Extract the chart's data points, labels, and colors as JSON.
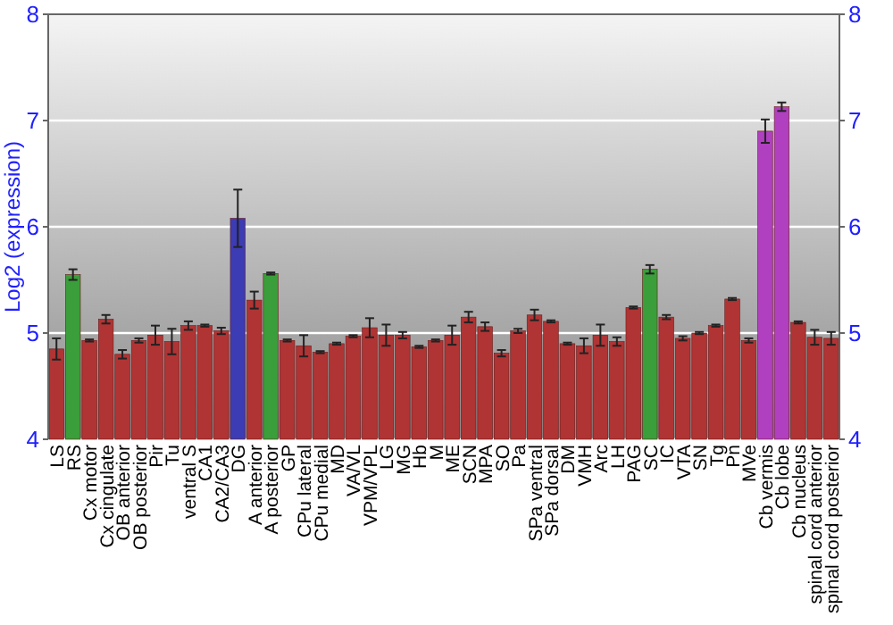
{
  "chart_data": {
    "type": "bar",
    "ylabel": "Log2 (expression)",
    "categories": [
      "LS",
      "RS",
      "Cx motor",
      "Cx cingulate",
      "OB anterior",
      "OB posterior",
      "Pir",
      "Tu",
      "ventral S",
      "CA1",
      "CA2/CA3",
      "DG",
      "A anterior",
      "A posterior",
      "GP",
      "CPu lateral",
      "CPu medial",
      "MD",
      "VA/VL",
      "VPM/VPL",
      "LG",
      "MG",
      "Hb",
      "M",
      "ME",
      "SCN",
      "MPA",
      "SO",
      "Pa",
      "SPa ventral",
      "SPa dorsal",
      "DM",
      "VMH",
      "Arc",
      "LH",
      "PAG",
      "SC",
      "IC",
      "VTA",
      "SN",
      "Tg",
      "Pn",
      "MVe",
      "Cb vermis",
      "Cb lobe",
      "Cb nucleus",
      "spinal cord anterior",
      "spinal cord posterior"
    ],
    "values": [
      4.85,
      5.55,
      4.93,
      5.13,
      4.8,
      4.93,
      4.98,
      4.92,
      5.07,
      5.07,
      5.02,
      6.08,
      5.31,
      5.56,
      4.93,
      4.88,
      4.82,
      4.9,
      4.97,
      5.05,
      4.98,
      4.98,
      4.87,
      4.93,
      4.98,
      5.15,
      5.06,
      4.81,
      5.02,
      5.17,
      5.11,
      4.9,
      4.88,
      4.98,
      4.92,
      5.24,
      5.6,
      5.15,
      4.95,
      5.0,
      5.07,
      5.32,
      4.93,
      6.9,
      7.13,
      5.1,
      4.96,
      4.95
    ],
    "errors": [
      0.1,
      0.05,
      0.01,
      0.04,
      0.04,
      0.02,
      0.09,
      0.12,
      0.04,
      0.01,
      0.03,
      0.27,
      0.08,
      0.01,
      0.01,
      0.1,
      0.01,
      0.01,
      0.01,
      0.09,
      0.1,
      0.03,
      0.01,
      0.01,
      0.09,
      0.05,
      0.04,
      0.03,
      0.02,
      0.05,
      0.01,
      0.01,
      0.07,
      0.1,
      0.04,
      0.01,
      0.04,
      0.02,
      0.02,
      0.01,
      0.01,
      0.01,
      0.02,
      0.11,
      0.04,
      0.01,
      0.07,
      0.06
    ],
    "colors": [
      "#b03434",
      "#3a9e3a",
      "#b03434",
      "#b03434",
      "#b03434",
      "#b03434",
      "#b03434",
      "#b03434",
      "#b03434",
      "#b03434",
      "#b03434",
      "#3c3cb4",
      "#b03434",
      "#3a9e3a",
      "#b03434",
      "#b03434",
      "#b03434",
      "#b03434",
      "#b03434",
      "#b03434",
      "#b03434",
      "#b03434",
      "#b03434",
      "#b03434",
      "#b03434",
      "#b03434",
      "#b03434",
      "#b03434",
      "#b03434",
      "#b03434",
      "#b03434",
      "#b03434",
      "#b03434",
      "#b03434",
      "#b03434",
      "#b03434",
      "#3a9e3a",
      "#b03434",
      "#b03434",
      "#b03434",
      "#b03434",
      "#b03434",
      "#b03434",
      "#b040c0",
      "#b040c0",
      "#b03434",
      "#b03434",
      "#b03434"
    ],
    "ylim": [
      4,
      8
    ],
    "yticks": [
      4,
      5,
      6,
      7,
      8
    ],
    "y2lim": [
      4,
      8
    ],
    "y2ticks": [
      4,
      5,
      6,
      7,
      8
    ],
    "grid": "y"
  }
}
